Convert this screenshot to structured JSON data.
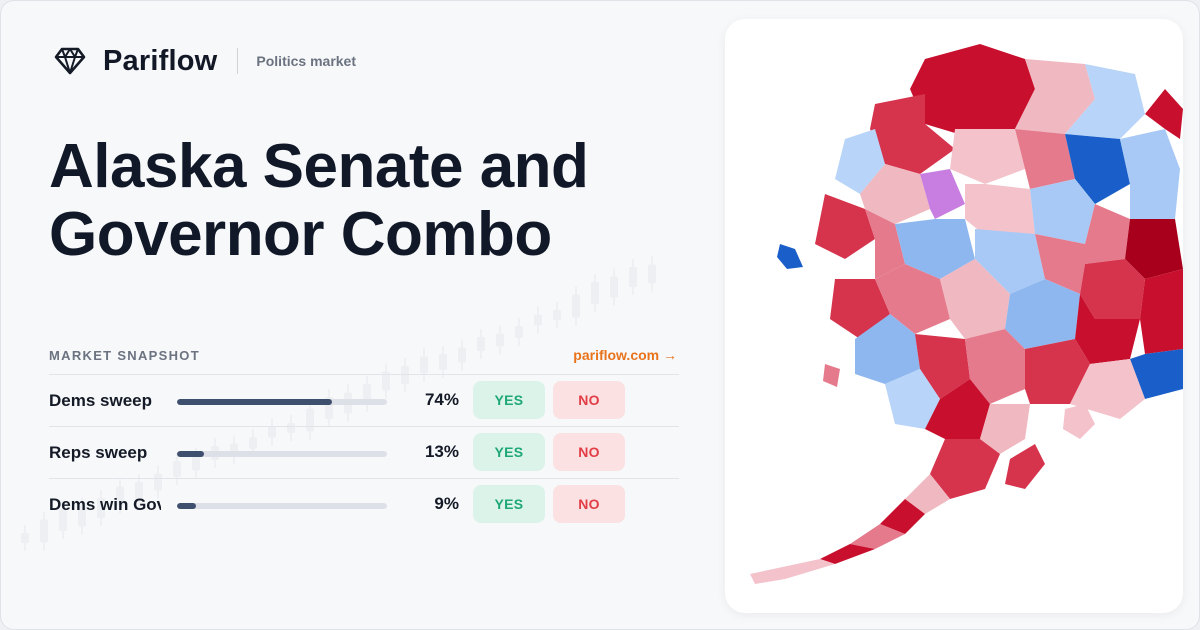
{
  "brand": {
    "name": "Pariflow",
    "tag": "Politics market",
    "logo_icon": "diamond-icon"
  },
  "title": "Alaska Senate and Governor Combo",
  "snapshot": {
    "label": "MARKET SNAPSHOT",
    "link": "pariflow.com →",
    "rows": [
      {
        "label": "Dems sweep",
        "pct": "74%",
        "value": 74,
        "yes": "YES",
        "no": "NO"
      },
      {
        "label": "Reps sweep",
        "pct": "13%",
        "value": 13,
        "yes": "YES",
        "no": "NO"
      },
      {
        "label": "Dems win Governor",
        "pct": "9%",
        "value": 9,
        "yes": "YES",
        "no": "NO"
      }
    ]
  },
  "colors": {
    "accent": "#e8731a",
    "yes": "#1fa877",
    "no": "#e23c45",
    "bar": "#3f4f6e"
  },
  "map": {
    "icon": "alaska-district-map"
  }
}
